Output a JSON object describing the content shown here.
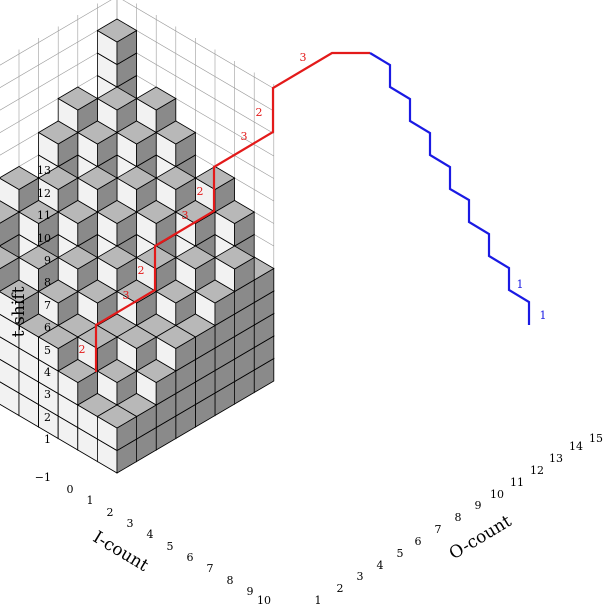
{
  "axes": {
    "t_label": "t-shift",
    "i_label": "I-count",
    "o_label": "O-count",
    "t_ticks": [
      "−1",
      "1",
      "2",
      "3",
      "4",
      "5",
      "6",
      "7",
      "8",
      "9",
      "10",
      "11",
      "12",
      "13"
    ],
    "i_ticks": [
      "0",
      "1",
      "2",
      "3",
      "4",
      "5",
      "6",
      "7",
      "8",
      "9",
      "10"
    ],
    "o_ticks": [
      "1",
      "2",
      "3",
      "4",
      "5",
      "6",
      "7",
      "8",
      "9",
      "10",
      "11",
      "12",
      "13",
      "14",
      "15"
    ]
  },
  "red_path_labels": [
    "2",
    "3",
    "2",
    "3",
    "2",
    "3",
    "2",
    "3"
  ],
  "blue_path_labels": [
    "1",
    "1"
  ],
  "colors": {
    "top": "#b8b8b8",
    "left": "#f2f2f2",
    "right": "#8a8a8a",
    "red": "#e31a1a",
    "blue": "#1a1ae3"
  }
}
